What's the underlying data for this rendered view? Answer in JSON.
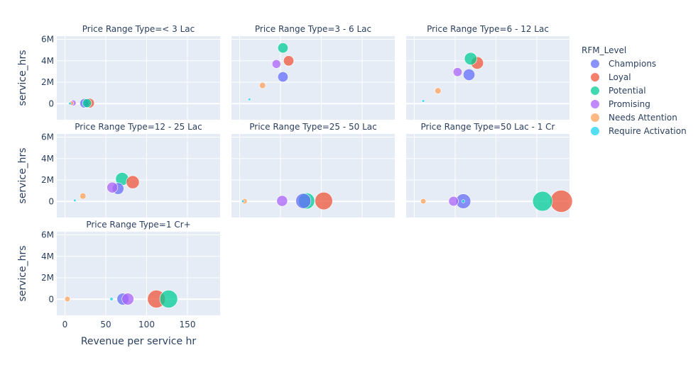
{
  "chart_data": {
    "type": "scatter",
    "subtype": "bubble-faceted",
    "xlabel": "Revenue per service hr",
    "ylabel": "service_hrs",
    "facet_prefix": "Price Range Type=",
    "x_ticks": [
      0,
      50,
      100,
      150
    ],
    "x_tick_labels": [
      "0",
      "50",
      "100",
      "150"
    ],
    "y_ticks": [
      0,
      2000000,
      4000000,
      6000000
    ],
    "y_tick_labels": [
      "0",
      "2M",
      "4M",
      "6M"
    ],
    "xlim": [
      -10,
      190
    ],
    "ylim": [
      -1500000,
      6300000
    ],
    "grid": true,
    "legend": {
      "title": "RFM_Level",
      "placement": "right",
      "entries": [
        {
          "name": "Champions",
          "color": "#636efa"
        },
        {
          "name": "Loyal",
          "color": "#ef553b"
        },
        {
          "name": "Potential",
          "color": "#00cc96"
        },
        {
          "name": "Promising",
          "color": "#ab63fa"
        },
        {
          "name": "Needs Attention",
          "color": "#ffa15a"
        },
        {
          "name": "Require Activation",
          "color": "#19d3f3"
        }
      ]
    },
    "facets": [
      {
        "title": "Price Range Type=< 3 Lac",
        "points": [
          {
            "series": "Require Activation",
            "x": 6,
            "y": 20000,
            "size": 1.0
          },
          {
            "series": "Needs Attention",
            "x": 8,
            "y": 40000,
            "size": 1.6
          },
          {
            "series": "Promising",
            "x": 10,
            "y": 60000,
            "size": 2.2
          },
          {
            "series": "Champions",
            "x": 24,
            "y": 40000,
            "size": 3.5
          },
          {
            "series": "Potential",
            "x": 27,
            "y": 50000,
            "size": 3.3
          },
          {
            "series": "Loyal",
            "x": 30,
            "y": 50000,
            "size": 3.6
          }
        ]
      },
      {
        "title": "Price Range Type=3 - 6 Lac",
        "points": [
          {
            "series": "Require Activation",
            "x": 12,
            "y": 400000,
            "size": 1.0
          },
          {
            "series": "Needs Attention",
            "x": 28,
            "y": 1700000,
            "size": 2.3
          },
          {
            "series": "Champions",
            "x": 53,
            "y": 2500000,
            "size": 3.8
          },
          {
            "series": "Promising",
            "x": 45,
            "y": 3700000,
            "size": 3.2
          },
          {
            "series": "Loyal",
            "x": 60,
            "y": 4000000,
            "size": 3.8
          },
          {
            "series": "Potential",
            "x": 53,
            "y": 5200000,
            "size": 3.8
          }
        ]
      },
      {
        "title": "Price Range Type=6 - 12 Lac",
        "points": [
          {
            "series": "Require Activation",
            "x": 11,
            "y": 250000,
            "size": 1.0
          },
          {
            "series": "Needs Attention",
            "x": 29,
            "y": 1200000,
            "size": 2.3
          },
          {
            "series": "Promising",
            "x": 53,
            "y": 2950000,
            "size": 3.3
          },
          {
            "series": "Champions",
            "x": 67,
            "y": 2700000,
            "size": 4.3
          },
          {
            "series": "Loyal",
            "x": 77,
            "y": 3800000,
            "size": 4.6
          },
          {
            "series": "Potential",
            "x": 69,
            "y": 4200000,
            "size": 4.6
          }
        ]
      },
      {
        "title": "Price Range Type=12 - 25 Lac",
        "points": [
          {
            "series": "Require Activation",
            "x": 12,
            "y": 100000,
            "size": 1.0
          },
          {
            "series": "Needs Attention",
            "x": 22,
            "y": 500000,
            "size": 2.3
          },
          {
            "series": "Promising",
            "x": 58,
            "y": 1300000,
            "size": 4.0
          },
          {
            "series": "Champions",
            "x": 65,
            "y": 1200000,
            "size": 4.3
          },
          {
            "series": "Potential",
            "x": 70,
            "y": 2100000,
            "size": 4.8
          },
          {
            "series": "Loyal",
            "x": 83,
            "y": 1800000,
            "size": 4.8
          }
        ]
      },
      {
        "title": "Price Range Type=25 - 50 Lac",
        "points": [
          {
            "series": "Require Activation",
            "x": 4,
            "y": 20000,
            "size": 1.0
          },
          {
            "series": "Needs Attention",
            "x": 6,
            "y": 20000,
            "size": 2.0
          },
          {
            "series": "Promising",
            "x": 52,
            "y": 50000,
            "size": 4.0
          },
          {
            "series": "Champions",
            "x": 78,
            "y": 50000,
            "size": 5.6
          },
          {
            "series": "Potential",
            "x": 82,
            "y": 50000,
            "size": 6.0
          },
          {
            "series": "Loyal",
            "x": 103,
            "y": 50000,
            "size": 6.5
          }
        ]
      },
      {
        "title": "Price Range Type=50 Lac - 1 Cr",
        "points": [
          {
            "series": "Needs Attention",
            "x": 11,
            "y": 20000,
            "size": 2.0
          },
          {
            "series": "Promising",
            "x": 48,
            "y": 20000,
            "size": 3.6
          },
          {
            "series": "Champions",
            "x": 60,
            "y": 20000,
            "size": 5.5
          },
          {
            "series": "Require Activation",
            "x": 60,
            "y": 20000,
            "size": 1.2
          },
          {
            "series": "Potential",
            "x": 157,
            "y": 20000,
            "size": 7.3
          },
          {
            "series": "Loyal",
            "x": 180,
            "y": 20000,
            "size": 8.2
          }
        ]
      },
      {
        "title": "Price Range Type=1 Cr+",
        "points": [
          {
            "series": "Needs Attention",
            "x": 3,
            "y": 20000,
            "size": 2.0
          },
          {
            "series": "Require Activation",
            "x": 57,
            "y": 20000,
            "size": 1.3
          },
          {
            "series": "Champions",
            "x": 71,
            "y": 20000,
            "size": 4.4
          },
          {
            "series": "Promising",
            "x": 77,
            "y": 20000,
            "size": 4.4
          },
          {
            "series": "Loyal",
            "x": 112,
            "y": 20000,
            "size": 6.6
          },
          {
            "series": "Potential",
            "x": 127,
            "y": 20000,
            "size": 6.6
          }
        ]
      }
    ]
  }
}
